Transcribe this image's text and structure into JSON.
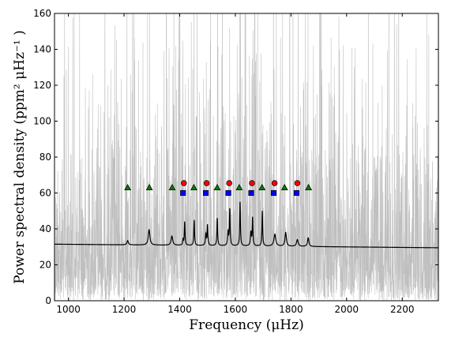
{
  "chart_data": {
    "type": "line",
    "title": "",
    "xlabel": "Frequency (μHz)",
    "ylabel": "Power spectral density (ppm²  μHz⁻¹ )",
    "xlim": [
      950,
      2330
    ],
    "ylim": [
      0,
      160
    ],
    "x_ticks": [
      1000,
      1200,
      1400,
      1600,
      1800,
      2000,
      2200
    ],
    "y_ticks": [
      0,
      20,
      40,
      60,
      80,
      100,
      120,
      140,
      160
    ],
    "grid": false,
    "colors": {
      "spectrum": "#bfbfbf",
      "fit": "#000000",
      "circle": "#ff0000",
      "square": "#0000ff",
      "triangle": "#008000"
    },
    "series": [
      {
        "kind": "noisy-spectrum",
        "background": {
          "start": 31,
          "end": 29.5
        },
        "envelope": {
          "center": 1600,
          "width": 350,
          "amp": 10
        }
      },
      {
        "kind": "fit",
        "background": {
          "start": 31.5,
          "end": 29.5
        },
        "peaks": [
          {
            "x": 1213,
            "y": 33.5,
            "w": 3
          },
          {
            "x": 1290,
            "y": 39.5,
            "w": 3.5
          },
          {
            "x": 1372,
            "y": 36,
            "w": 3.5
          },
          {
            "x": 1412,
            "y": 34,
            "w": 1.5
          },
          {
            "x": 1418,
            "y": 44,
            "w": 1.5
          },
          {
            "x": 1452,
            "y": 45,
            "w": 1.5
          },
          {
            "x": 1494,
            "y": 37,
            "w": 2
          },
          {
            "x": 1500,
            "y": 42,
            "w": 1.5
          },
          {
            "x": 1535,
            "y": 46,
            "w": 1.5
          },
          {
            "x": 1574,
            "y": 38,
            "w": 2
          },
          {
            "x": 1580,
            "y": 51,
            "w": 1.5
          },
          {
            "x": 1617,
            "y": 55,
            "w": 1.5
          },
          {
            "x": 1656,
            "y": 38,
            "w": 2
          },
          {
            "x": 1662,
            "y": 46,
            "w": 1.5
          },
          {
            "x": 1697,
            "y": 50,
            "w": 1.5
          },
          {
            "x": 1742,
            "y": 37,
            "w": 4
          },
          {
            "x": 1781,
            "y": 38,
            "w": 3
          },
          {
            "x": 1823,
            "y": 34,
            "w": 3.5
          },
          {
            "x": 1862,
            "y": 35,
            "w": 3
          }
        ]
      },
      {
        "kind": "markers",
        "marker": "circle",
        "x": [
          1415,
          1497,
          1578,
          1660,
          1741,
          1823
        ],
        "y": [
          65.5,
          65.5,
          65.5,
          65.5,
          65.5,
          65.5
        ]
      },
      {
        "kind": "markers",
        "marker": "square",
        "x": [
          1412,
          1494,
          1575,
          1657,
          1738,
          1820
        ],
        "y": [
          60,
          60,
          60,
          60,
          60,
          60
        ]
      },
      {
        "kind": "markers",
        "marker": "triangle",
        "x": [
          1213,
          1291,
          1373,
          1451,
          1535,
          1614,
          1696,
          1777,
          1863
        ],
        "y": [
          63,
          63,
          63,
          63,
          63,
          63,
          63,
          63,
          63
        ]
      }
    ]
  }
}
